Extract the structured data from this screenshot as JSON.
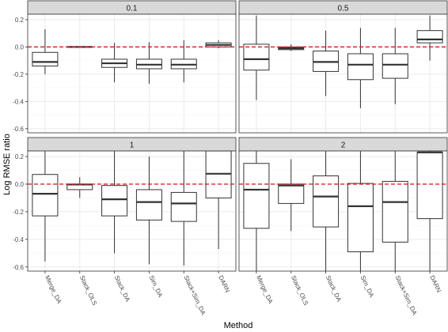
{
  "chart_data": {
    "type": "boxplot",
    "xlabel": "Method",
    "ylabel": "Log RMSE ratio",
    "ylim": [
      -0.63,
      0.24
    ],
    "yticks": [
      {
        "value": 0.2,
        "label": "0.2"
      },
      {
        "value": 0.0,
        "label": "0.0"
      },
      {
        "value": -0.2,
        "label": "-0.2"
      },
      {
        "value": -0.4,
        "label": "-0.4"
      },
      {
        "value": -0.6,
        "label": "-0.6"
      }
    ],
    "categories": [
      "Merge_DA",
      "Stack_OLS",
      "Stack_DA",
      "Sim_DA",
      "Stack+Sim_DA",
      "DARN"
    ],
    "reference_line": {
      "value": 0,
      "color": "#d62728",
      "style": "dashed"
    },
    "panel_strip_color": "#d9d9d9",
    "panels": [
      {
        "label": "0.1",
        "boxes": [
          {
            "min": -0.2,
            "q1": -0.14,
            "median": -0.11,
            "q3": -0.04,
            "max": 0.13
          },
          {
            "min": -0.005,
            "q1": -0.002,
            "median": 0.0,
            "q3": 0.002,
            "max": 0.005
          },
          {
            "min": -0.26,
            "q1": -0.15,
            "median": -0.12,
            "q3": -0.09,
            "max": 0.03
          },
          {
            "min": -0.27,
            "q1": -0.16,
            "median": -0.13,
            "q3": -0.09,
            "max": 0.035
          },
          {
            "min": -0.26,
            "q1": -0.16,
            "median": -0.13,
            "q3": -0.09,
            "max": 0.05
          },
          {
            "min": -0.01,
            "q1": 0.0,
            "median": 0.015,
            "q3": 0.03,
            "max": 0.05
          }
        ]
      },
      {
        "label": "0.5",
        "boxes": [
          {
            "min": -0.39,
            "q1": -0.17,
            "median": -0.09,
            "q3": 0.02,
            "max": 0.23
          },
          {
            "min": -0.03,
            "q1": -0.02,
            "median": -0.01,
            "q3": 0.0,
            "max": 0.02
          },
          {
            "min": -0.36,
            "q1": -0.18,
            "median": -0.11,
            "q3": -0.03,
            "max": 0.12
          },
          {
            "min": -0.45,
            "q1": -0.24,
            "median": -0.13,
            "q3": -0.05,
            "max": 0.14
          },
          {
            "min": -0.42,
            "q1": -0.23,
            "median": -0.13,
            "q3": -0.05,
            "max": 0.14
          },
          {
            "min": -0.1,
            "q1": 0.03,
            "median": 0.055,
            "q3": 0.12,
            "max": 0.23
          }
        ]
      },
      {
        "label": "1",
        "boxes": [
          {
            "min": -0.56,
            "q1": -0.23,
            "median": -0.07,
            "q3": 0.07,
            "max": 0.24
          },
          {
            "min": -0.1,
            "q1": -0.04,
            "median": -0.003,
            "q3": 0.0,
            "max": 0.05
          },
          {
            "min": -0.5,
            "q1": -0.23,
            "median": -0.11,
            "q3": -0.01,
            "max": 0.24
          },
          {
            "min": -0.58,
            "q1": -0.26,
            "median": -0.13,
            "q3": -0.04,
            "max": 0.2
          },
          {
            "min": -0.59,
            "q1": -0.27,
            "median": -0.14,
            "q3": -0.06,
            "max": 0.24
          },
          {
            "min": -0.47,
            "q1": -0.1,
            "median": 0.075,
            "q3": 0.24,
            "max": 0.24
          }
        ]
      },
      {
        "label": "2",
        "boxes": [
          {
            "min": -0.63,
            "q1": -0.32,
            "median": -0.04,
            "q3": 0.15,
            "max": 0.24
          },
          {
            "min": -0.34,
            "q1": -0.14,
            "median": -0.01,
            "q3": 0.0,
            "max": 0.18
          },
          {
            "min": -0.63,
            "q1": -0.31,
            "median": -0.09,
            "q3": 0.06,
            "max": 0.24
          },
          {
            "min": -0.63,
            "q1": -0.49,
            "median": -0.16,
            "q3": 0.005,
            "max": 0.24
          },
          {
            "min": -0.63,
            "q1": -0.42,
            "median": -0.13,
            "q3": 0.02,
            "max": 0.24
          },
          {
            "min": -0.63,
            "q1": -0.25,
            "median": 0.23,
            "q3": 0.23,
            "max": 0.24
          }
        ]
      }
    ]
  }
}
